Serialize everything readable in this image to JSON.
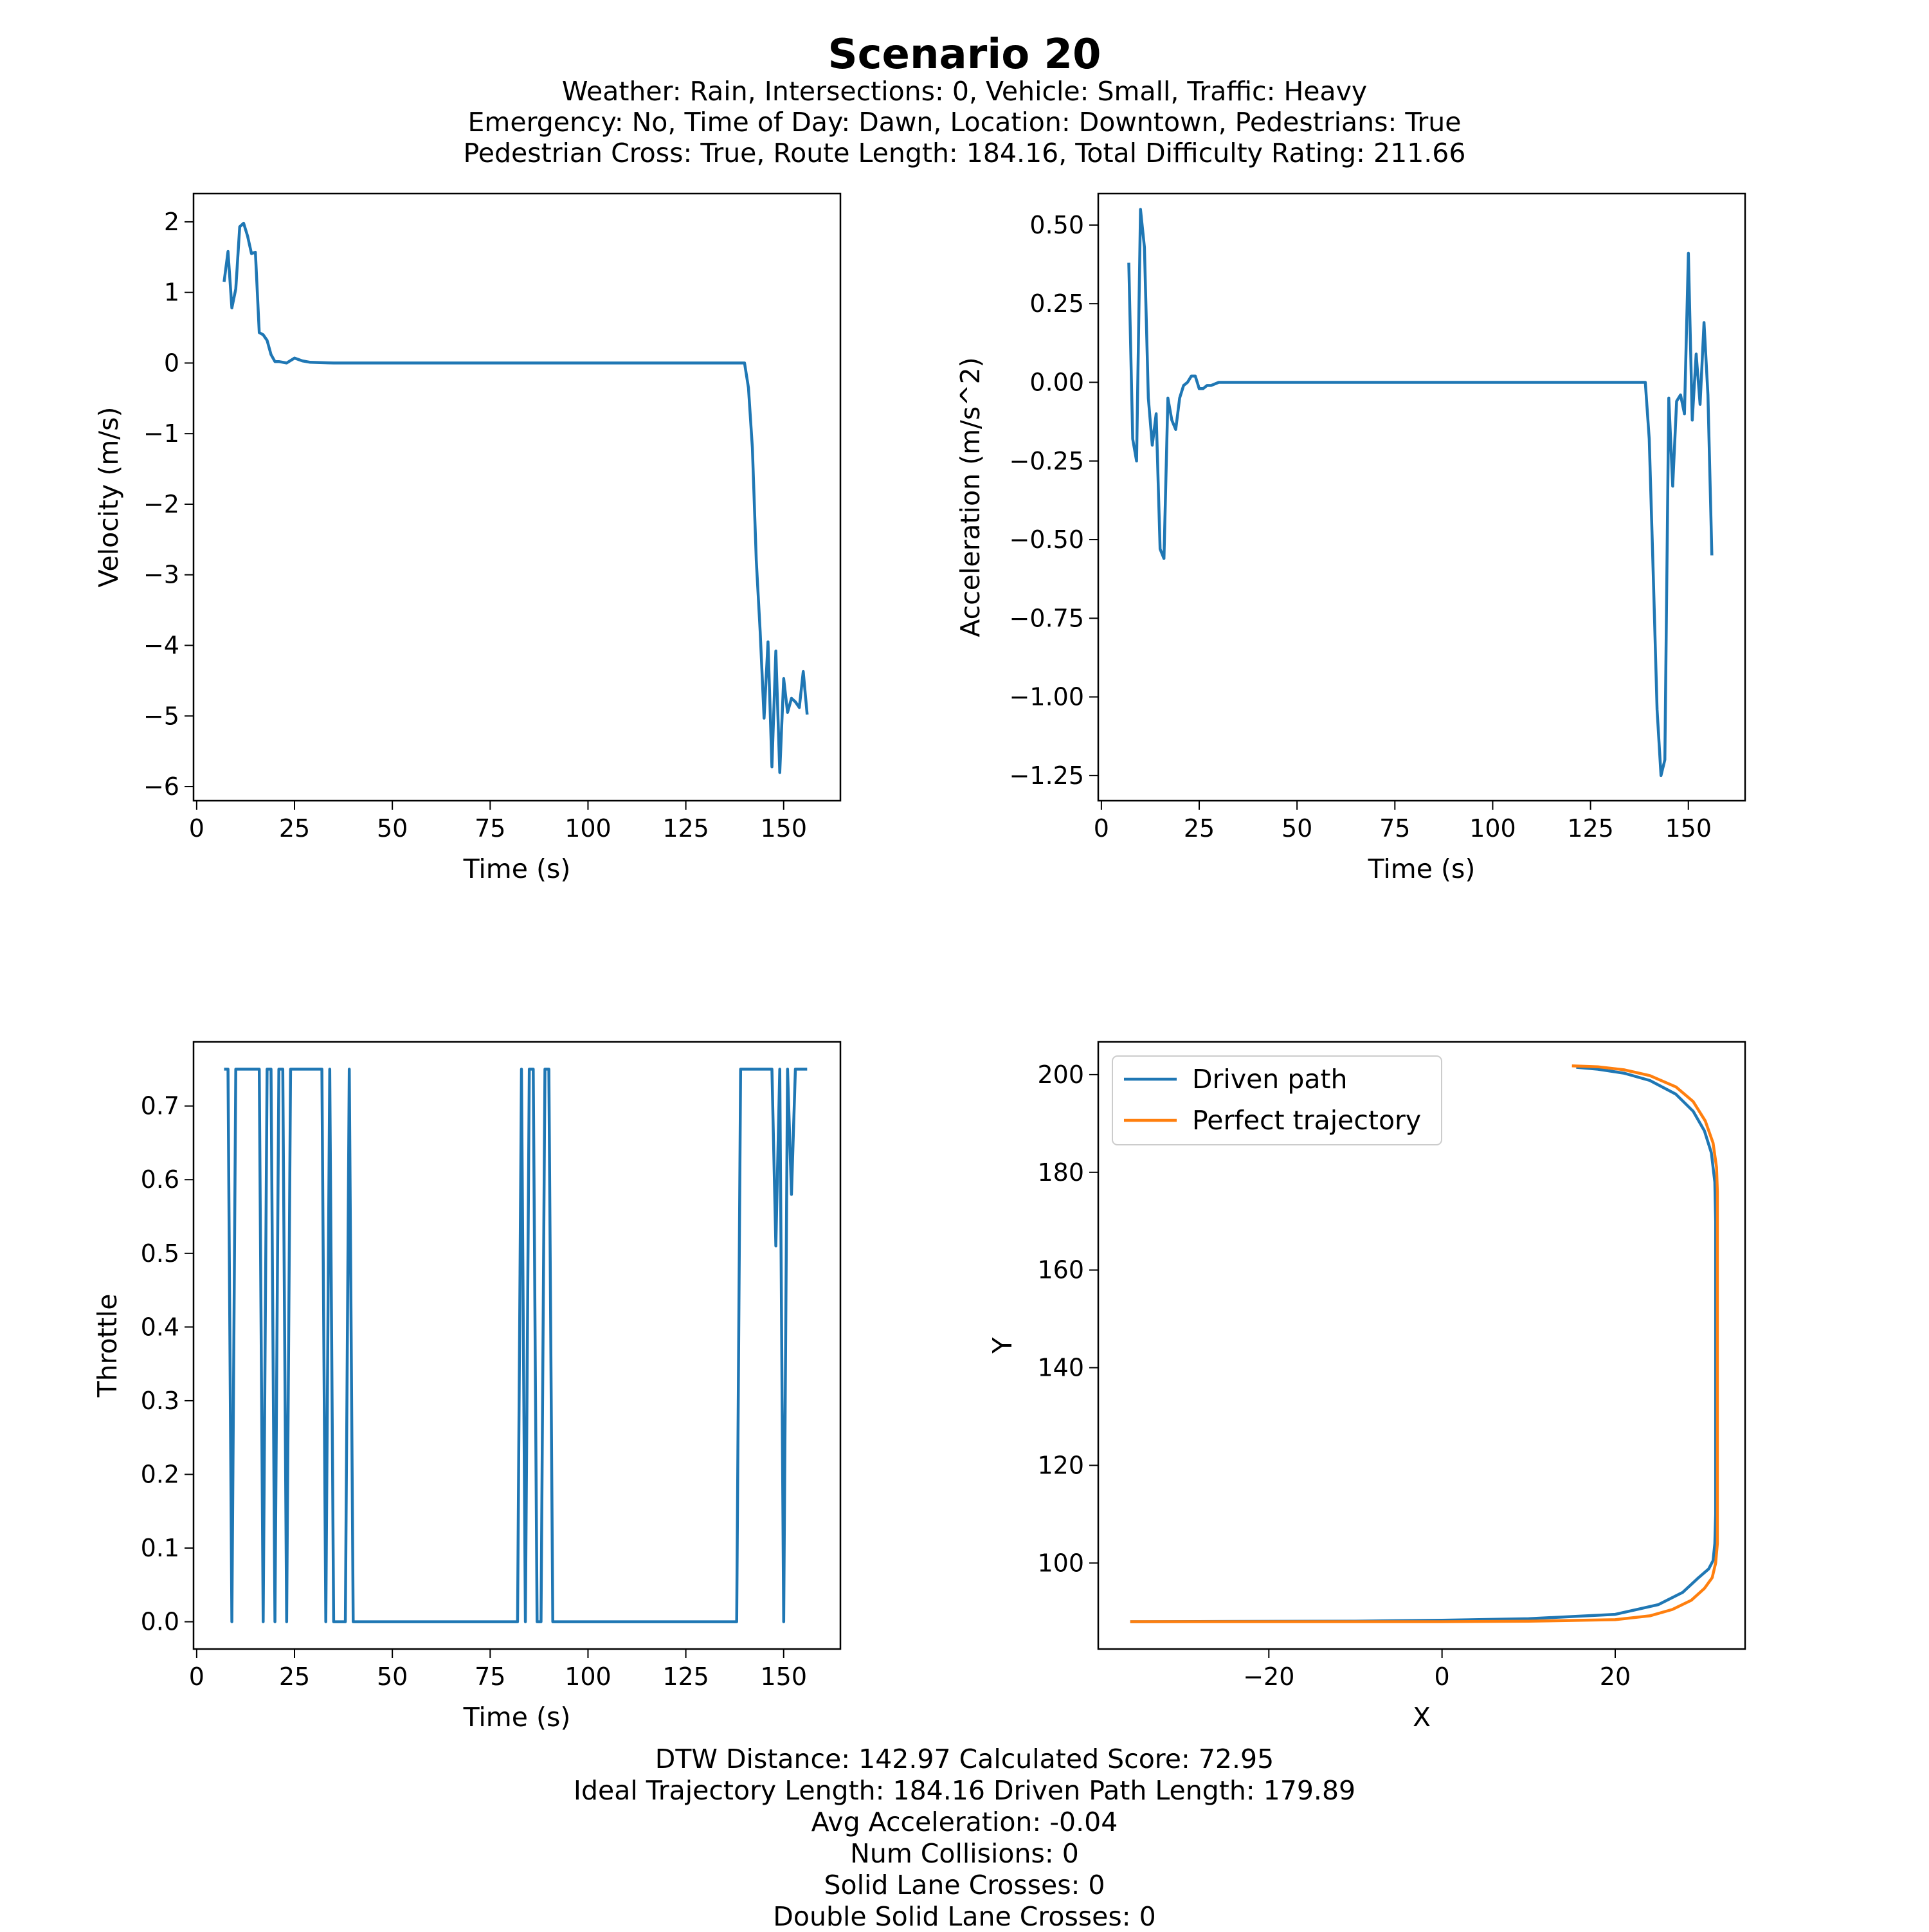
{
  "figure": {
    "title": "Scenario 20",
    "subtitle_lines": [
      "Weather: Rain, Intersections: 0, Vehicle: Small, Traffic: Heavy",
      "Emergency: No, Time of Day: Dawn, Location: Downtown, Pedestrians: True",
      "Pedestrian Cross: True, Route Length: 184.16, Total Difficulty Rating: 211.66"
    ],
    "footer_lines": [
      "DTW Distance: 142.97  Calculated Score: 72.95",
      "Ideal Trajectory Length: 184.16   Driven Path Length: 179.89",
      "Avg Acceleration: -0.04",
      "Num Collisions: 0",
      "Solid Lane Crosses: 0",
      "Double Solid Lane Crosses: 0"
    ]
  },
  "colors": {
    "blue": "#1f77b4",
    "orange": "#ff7f0e"
  },
  "chart_data": [
    {
      "type": "line",
      "xlabel": "Time (s)",
      "ylabel": "Velocity (m/s)",
      "xlim": [
        -0.8,
        164.5
      ],
      "ylim": [
        -6.2,
        2.4
      ],
      "xticks": [
        0,
        25,
        50,
        75,
        100,
        125,
        150
      ],
      "yticks": [
        -6,
        -5,
        -4,
        -3,
        -2,
        -1,
        0,
        1,
        2
      ],
      "grid": false,
      "series": [
        {
          "color": "#1f77b4",
          "x": [
            7,
            8,
            9,
            10,
            11,
            12,
            13,
            14,
            15,
            16,
            17,
            18,
            19,
            20,
            21,
            23,
            25,
            27,
            29,
            35,
            40,
            60,
            80,
            100,
            120,
            139,
            140,
            141,
            142,
            143,
            144,
            145,
            146,
            147,
            148,
            149,
            150,
            151,
            152,
            153,
            154,
            155,
            156
          ],
          "y": [
            1.15,
            1.58,
            0.78,
            1.05,
            1.93,
            1.98,
            1.8,
            1.55,
            1.57,
            0.43,
            0.4,
            0.32,
            0.12,
            0.02,
            0.02,
            0.0,
            0.07,
            0.03,
            0.01,
            0.0,
            0.0,
            0.0,
            0.0,
            0.0,
            0.0,
            0.0,
            0.0,
            -0.35,
            -1.2,
            -2.8,
            -3.8,
            -5.03,
            -3.95,
            -5.72,
            -4.08,
            -5.8,
            -4.47,
            -4.95,
            -4.75,
            -4.8,
            -4.88,
            -4.37,
            -4.98
          ]
        }
      ]
    },
    {
      "type": "line",
      "xlabel": "Time (s)",
      "ylabel": "Acceleration (m/s^2)",
      "xlim": [
        -0.8,
        164.5
      ],
      "ylim": [
        -1.33,
        0.6
      ],
      "xticks": [
        0,
        25,
        50,
        75,
        100,
        125,
        150
      ],
      "yticks": [
        -1.25,
        -1.0,
        -0.75,
        -0.5,
        -0.25,
        0.0,
        0.25,
        0.5
      ],
      "yticklabels": [
        "−1.25",
        "−1.00",
        "−0.75",
        "−0.50",
        "−0.25",
        "0.00",
        "0.25",
        "0.50"
      ],
      "grid": false,
      "series": [
        {
          "color": "#1f77b4",
          "x": [
            7,
            8,
            9,
            10,
            11,
            12,
            13,
            14,
            15,
            16,
            17,
            18,
            19,
            20,
            21,
            22,
            23,
            24,
            25,
            26,
            27,
            28,
            30,
            35,
            40,
            60,
            80,
            100,
            120,
            138,
            139,
            140,
            141,
            142,
            143,
            144,
            145,
            146,
            147,
            148,
            149,
            150,
            151,
            152,
            153,
            154,
            155,
            156
          ],
          "y": [
            0.38,
            -0.18,
            -0.25,
            0.55,
            0.43,
            -0.05,
            -0.2,
            -0.1,
            -0.53,
            -0.56,
            -0.05,
            -0.12,
            -0.15,
            -0.05,
            -0.01,
            0.0,
            0.02,
            0.02,
            -0.02,
            -0.02,
            -0.01,
            -0.01,
            0.0,
            0.0,
            0.0,
            0.0,
            0.0,
            0.0,
            0.0,
            0.0,
            0.0,
            -0.18,
            -0.6,
            -1.04,
            -1.25,
            -1.2,
            -0.05,
            -0.33,
            -0.06,
            -0.04,
            -0.1,
            0.41,
            -0.12,
            0.09,
            -0.07,
            0.19,
            -0.04,
            -0.55
          ]
        }
      ]
    },
    {
      "type": "line",
      "xlabel": "Time (s)",
      "ylabel": "Throttle",
      "xlim": [
        -0.8,
        164.5
      ],
      "ylim": [
        -0.037,
        0.787
      ],
      "xticks": [
        0,
        25,
        50,
        75,
        100,
        125,
        150
      ],
      "yticks": [
        0.0,
        0.1,
        0.2,
        0.3,
        0.4,
        0.5,
        0.6,
        0.7
      ],
      "yticklabels": [
        "0.0",
        "0.1",
        "0.2",
        "0.3",
        "0.4",
        "0.5",
        "0.6",
        "0.7"
      ],
      "grid": false,
      "series": [
        {
          "color": "#1f77b4",
          "x": [
            7,
            8,
            9,
            10,
            16,
            17,
            18,
            19,
            20,
            21,
            22,
            23,
            24,
            32,
            33,
            34,
            35,
            36,
            38,
            39,
            40,
            82,
            83,
            84,
            85,
            86,
            87,
            88,
            89,
            90,
            91,
            92,
            138,
            139,
            146,
            147,
            148,
            149,
            150,
            151,
            152,
            153,
            156
          ],
          "y": [
            0.75,
            0.75,
            0.0,
            0.75,
            0.75,
            0.0,
            0.75,
            0.75,
            0.0,
            0.75,
            0.75,
            0.0,
            0.75,
            0.75,
            0.0,
            0.75,
            0.0,
            0.0,
            0.0,
            0.75,
            0.0,
            0.0,
            0.75,
            0.0,
            0.75,
            0.75,
            0.0,
            0.0,
            0.75,
            0.75,
            0.0,
            0.0,
            0.0,
            0.75,
            0.75,
            0.75,
            0.51,
            0.75,
            0.0,
            0.75,
            0.58,
            0.75,
            0.75
          ]
        }
      ]
    },
    {
      "type": "line",
      "xlabel": "X",
      "ylabel": "Y",
      "xlim": [
        -39.7,
        35.0
      ],
      "ylim": [
        82.4,
        206.7
      ],
      "xticks": [
        -20,
        0,
        20
      ],
      "xticklabels": [
        "−20",
        "0",
        "20"
      ],
      "yticks": [
        100,
        120,
        140,
        160,
        180,
        200
      ],
      "grid": false,
      "legend": "upper-left",
      "series": [
        {
          "name": "Driven path",
          "color": "#1f77b4",
          "x": [
            15.5,
            18,
            21,
            24,
            27,
            29,
            30.3,
            31.1,
            31.5,
            31.6,
            31.6,
            31.6,
            31.5,
            31.3,
            30.8,
            29.5,
            27.8,
            25,
            20,
            10,
            0,
            -10,
            -36
          ],
          "y": [
            201.5,
            201.1,
            200.3,
            198.8,
            196.0,
            192.5,
            188.5,
            184.0,
            178.0,
            170.0,
            140.0,
            110.0,
            104.0,
            100.5,
            98.8,
            96.8,
            94.0,
            91.5,
            89.5,
            88.6,
            88.3,
            88.1,
            88.0
          ]
        },
        {
          "name": "Perfect trajectory",
          "color": "#ff7f0e",
          "x": [
            15.0,
            18,
            21,
            24,
            27,
            29,
            30.4,
            31.3,
            31.7,
            31.8,
            31.8,
            31.8,
            31.6,
            31.2,
            30.3,
            28.8,
            26.6,
            24,
            20,
            10,
            0,
            -10,
            -36
          ],
          "y": [
            201.8,
            201.6,
            201.0,
            199.8,
            197.5,
            194.5,
            190.5,
            186.0,
            181.0,
            176.0,
            140.0,
            104.0,
            100.0,
            97.0,
            94.8,
            92.4,
            90.5,
            89.2,
            88.4,
            88.1,
            88.0,
            88.0,
            88.0
          ]
        }
      ]
    }
  ]
}
